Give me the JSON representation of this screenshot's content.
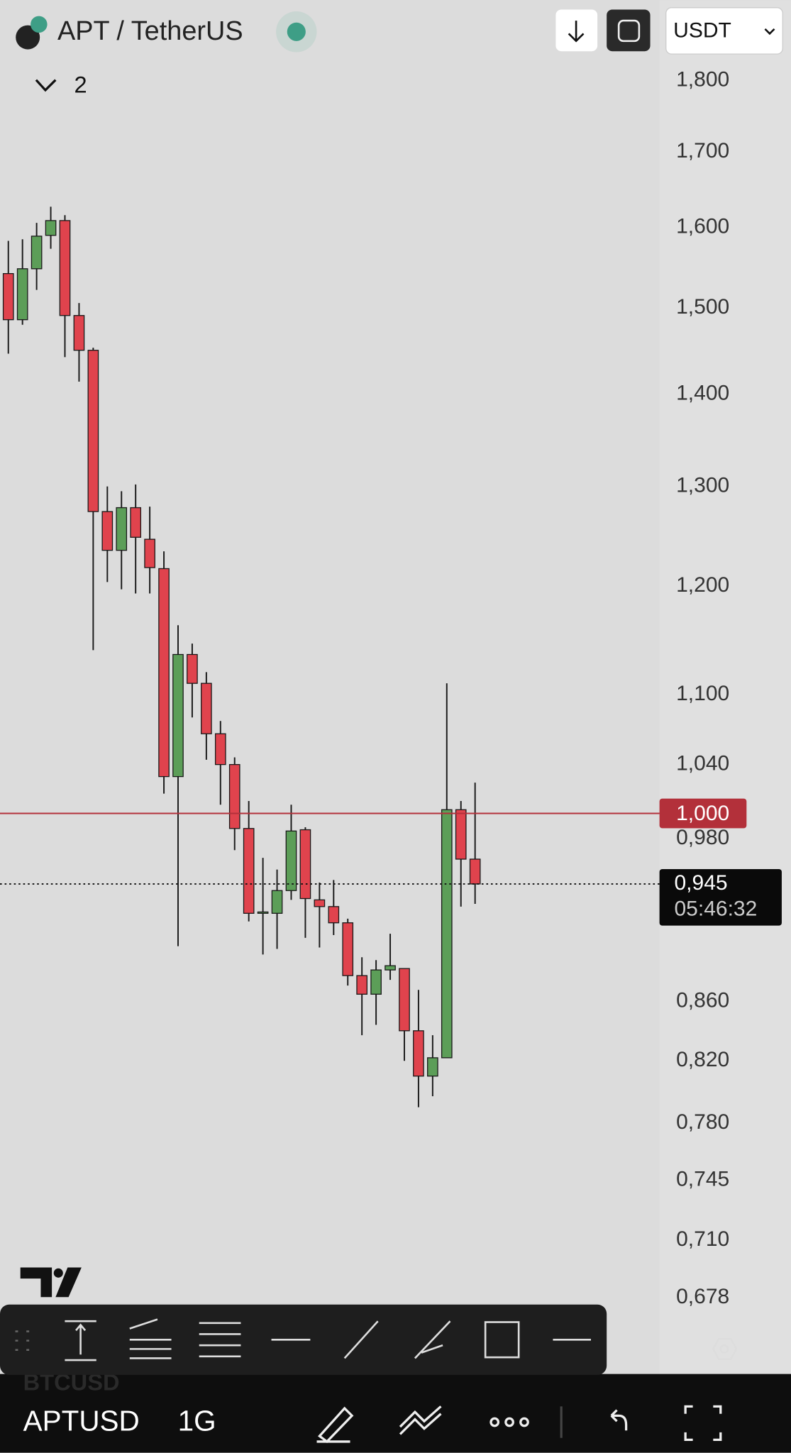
{
  "header": {
    "title": "APT / TetherUS",
    "indicator_count": "2",
    "currency": "USDT"
  },
  "chart_data": {
    "type": "candlestick",
    "categories": [
      null,
      null,
      null,
      null,
      null,
      null,
      null,
      null,
      null,
      null,
      null,
      null,
      null,
      null,
      null,
      null,
      null,
      null,
      null,
      null,
      null,
      null,
      null,
      null,
      null,
      null,
      null,
      null,
      null,
      null,
      null,
      null,
      null,
      null
    ],
    "series": [
      {
        "open": [
          1.542,
          1.486,
          1.548,
          1.59,
          1.609,
          1.491,
          1.45,
          1.274,
          1.235,
          1.278,
          1.246,
          1.217,
          1.03,
          1.136,
          1.11,
          1.066,
          1.04,
          0.988,
          0.923,
          0.923,
          0.94,
          0.987,
          0.933,
          0.928,
          0.916,
          0.878,
          0.865,
          0.882,
          0.883,
          0.84,
          0.81,
          0.822,
          1.003,
          0.964
        ],
        "high": [
          1.583,
          1.585,
          1.606,
          1.627,
          1.616,
          1.506,
          1.453,
          1.3,
          1.295,
          1.302,
          1.279,
          1.234,
          1.163,
          1.146,
          1.12,
          1.077,
          1.046,
          1.01,
          0.965,
          0.956,
          1.007,
          0.989,
          0.946,
          0.948,
          0.919,
          0.891,
          0.889,
          0.908,
          0.883,
          0.868,
          0.837,
          1.11,
          1.01,
          1.025
        ],
        "low": [
          1.446,
          1.48,
          1.522,
          1.573,
          1.442,
          1.414,
          1.14,
          1.204,
          1.197,
          1.193,
          1.193,
          1.016,
          0.899,
          1.08,
          1.044,
          1.007,
          0.971,
          0.917,
          0.893,
          0.897,
          0.933,
          0.905,
          0.898,
          0.907,
          0.871,
          0.837,
          0.844,
          0.875,
          0.82,
          0.79,
          0.797,
          0.822,
          0.928,
          0.93
        ],
        "close": [
          1.486,
          1.548,
          1.589,
          1.609,
          1.491,
          1.45,
          1.274,
          1.235,
          1.278,
          1.248,
          1.218,
          1.03,
          1.136,
          1.11,
          1.066,
          1.04,
          0.988,
          0.923,
          0.924,
          0.94,
          0.986,
          0.934,
          0.928,
          0.916,
          0.878,
          0.865,
          0.882,
          0.885,
          0.84,
          0.81,
          0.822,
          1.003,
          0.964,
          0.945
        ],
        "up_color": "#5c9e58",
        "down_color": "#e0434d"
      }
    ],
    "ylim": [
      0.66,
      1.85
    ],
    "log_scale": true,
    "yticks": [
      {
        "value": 1.8,
        "label": "1,800"
      },
      {
        "value": 1.7,
        "label": "1,700"
      },
      {
        "value": 1.6,
        "label": "1,600"
      },
      {
        "value": 1.5,
        "label": "1,500"
      },
      {
        "value": 1.4,
        "label": "1,400"
      },
      {
        "value": 1.3,
        "label": "1,300"
      },
      {
        "value": 1.2,
        "label": "1,200"
      },
      {
        "value": 1.1,
        "label": "1,100"
      },
      {
        "value": 1.04,
        "label": "1,040"
      },
      {
        "value": 0.98,
        "label": "0,980"
      },
      {
        "value": 0.86,
        "label": "0,860"
      },
      {
        "value": 0.82,
        "label": "0,820"
      },
      {
        "value": 0.78,
        "label": "0,780"
      },
      {
        "value": 0.745,
        "label": "0,745"
      },
      {
        "value": 0.71,
        "label": "0,710"
      },
      {
        "value": 0.678,
        "label": "0,678"
      }
    ],
    "price_line": {
      "value": 1.0,
      "label": "1,000",
      "color": "#b3303a"
    },
    "last_price": {
      "value": 0.945,
      "label": "0,945",
      "countdown": "05:46:32"
    }
  },
  "bottom_bar": {
    "symbol": "APTUSD",
    "interval": "1G",
    "background_symbol": "BTCUSD"
  }
}
